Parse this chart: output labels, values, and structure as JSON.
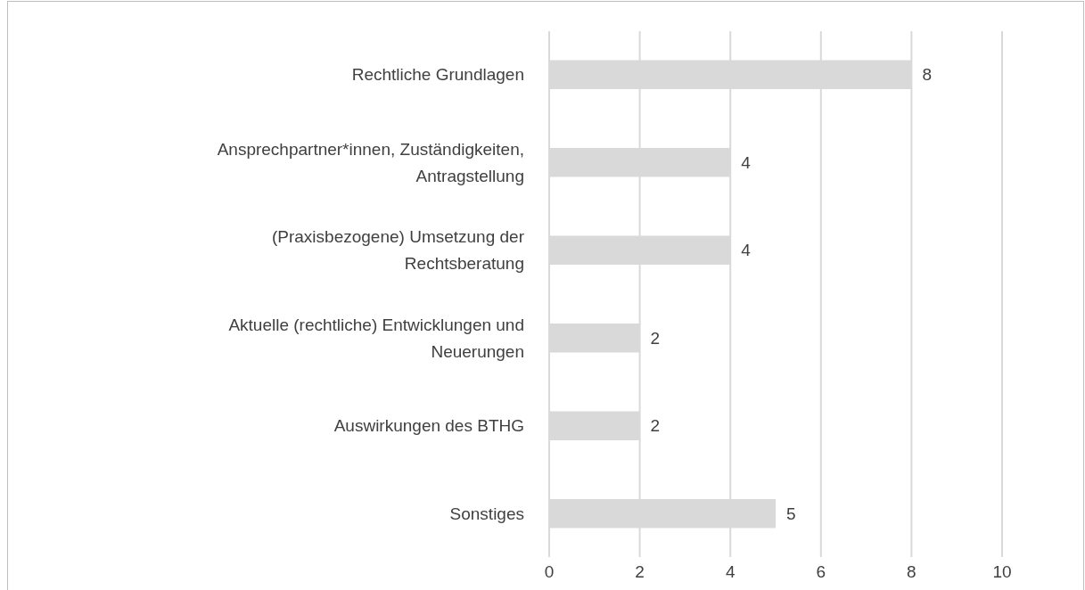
{
  "chart_data": {
    "type": "bar",
    "orientation": "horizontal",
    "categories": [
      "Rechtliche Grundlagen",
      "Ansprechpartner*innen, Zuständigkeiten, Antragstellung",
      "(Praxisbezogene) Umsetzung der Rechtsberatung",
      "Aktuelle (rechtliche) Entwicklungen und Neuerungen",
      "Auswirkungen des BTHG",
      "Sonstiges"
    ],
    "values": [
      8,
      4,
      4,
      2,
      2,
      5
    ],
    "color": "#d9d9d9",
    "xlim": [
      0,
      10
    ],
    "xticks": [
      0,
      2,
      4,
      6,
      8,
      10
    ],
    "grid": "x",
    "data_labels": true
  }
}
